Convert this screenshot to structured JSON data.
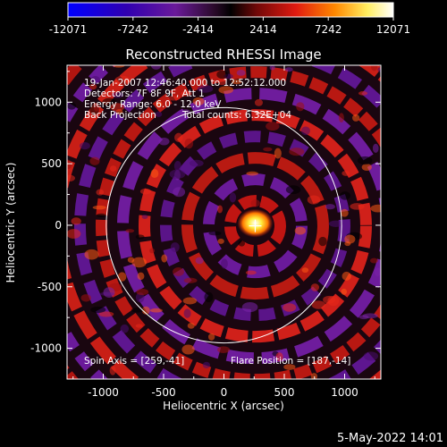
{
  "chart_data": {
    "type": "heatmap",
    "title": "Reconstructed RHESSI Image",
    "xlabel": "Heliocentric X (arcsec)",
    "ylabel": "Heliocentric Y (arcsec)",
    "xlim": [
      -1300,
      1300
    ],
    "ylim": [
      -1250,
      1300
    ],
    "x_ticks": [
      "-1000",
      "-500",
      "0",
      "500",
      "1000"
    ],
    "x_tick_values": [
      -1000,
      -500,
      0,
      500,
      1000
    ],
    "y_ticks": [
      "-1000",
      "-500",
      "0",
      "500",
      "1000"
    ],
    "y_tick_values": [
      -1000,
      -500,
      0,
      500,
      1000
    ],
    "colorbar": {
      "labels": [
        "-12071",
        "-7242",
        "-2414",
        "2414",
        "7242",
        "12071"
      ],
      "min": -12071,
      "max": 12071
    },
    "info_lines": [
      "19-Jan-2007 12:46:40.000 to 12:52:12.000",
      "Detectors: 7F 8F 9F, Att 1",
      "Energy Range: 6.0 - 12.0 keV",
      "Back Projection"
    ],
    "total_counts": "Total counts: 6.32E+04",
    "spin_axis": "Spin Axis = [259,-41]",
    "flare_position": "Flare Position = [187,-14]",
    "solar_limb": {
      "center_x": 0,
      "center_y": 0,
      "radius": 975
    },
    "source_marker": {
      "x": 259,
      "y": -5
    }
  },
  "footer_date": "5-May-2022 14:01",
  "colors": {
    "background": "#000000",
    "text": "#ffffff",
    "colormap": [
      "#0000ff",
      "#400080",
      "#7a1a9a",
      "#000000",
      "#b01010",
      "#ff3300",
      "#ff9900",
      "#ffff80",
      "#ffffff"
    ]
  }
}
